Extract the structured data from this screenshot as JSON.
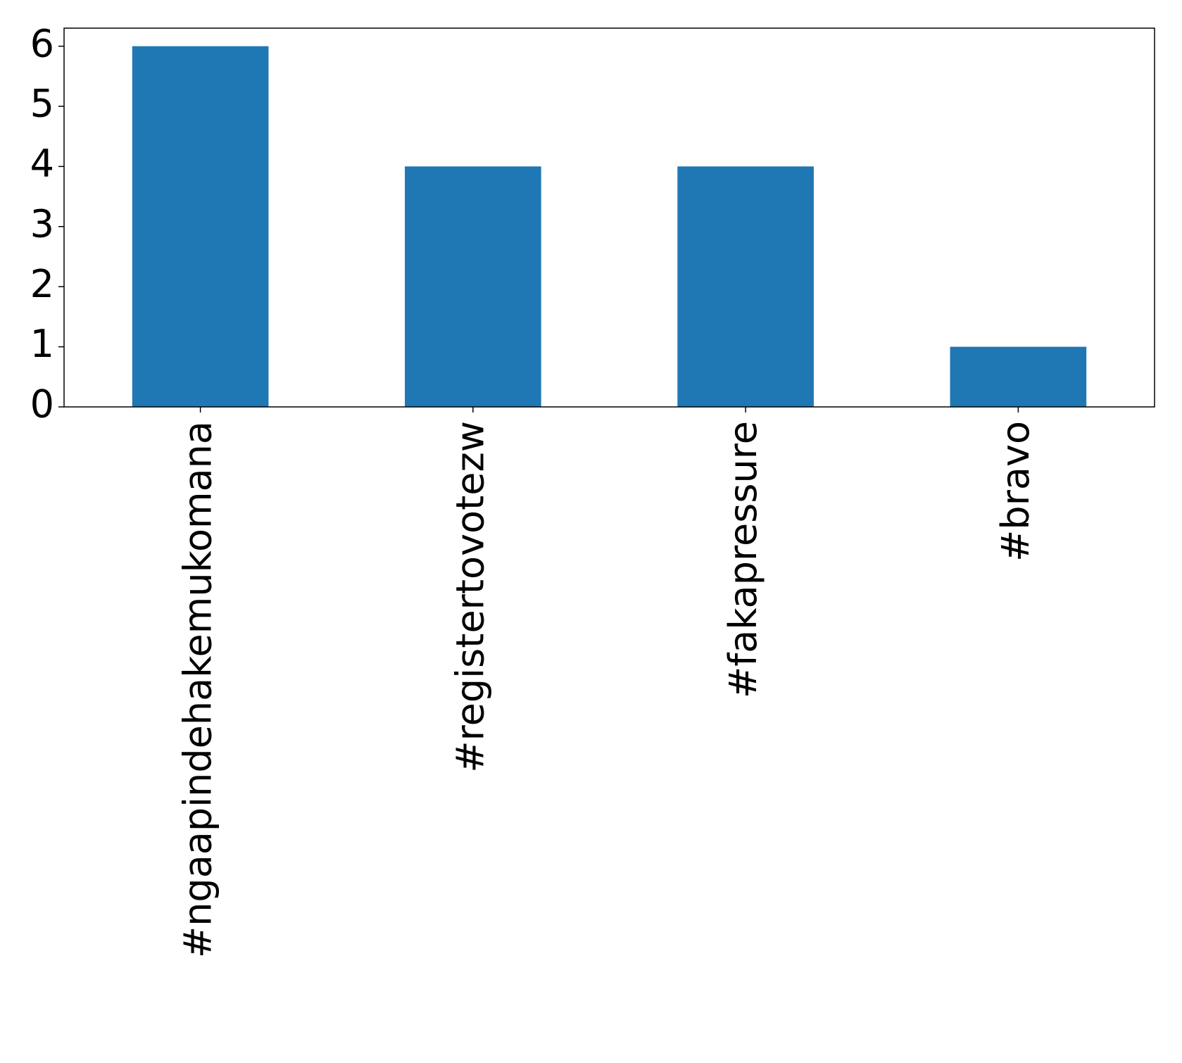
{
  "chart_data": {
    "type": "bar",
    "categories": [
      "#ngaapindehakemukomana",
      "#registertovotezw",
      "#fakapressure",
      "#bravo"
    ],
    "values": [
      6,
      4,
      4,
      1
    ],
    "color": "#1f77b4",
    "ylim": [
      0,
      6.3
    ],
    "yticks": [
      0,
      1,
      2,
      3,
      4,
      5,
      6
    ],
    "grid": false
  }
}
